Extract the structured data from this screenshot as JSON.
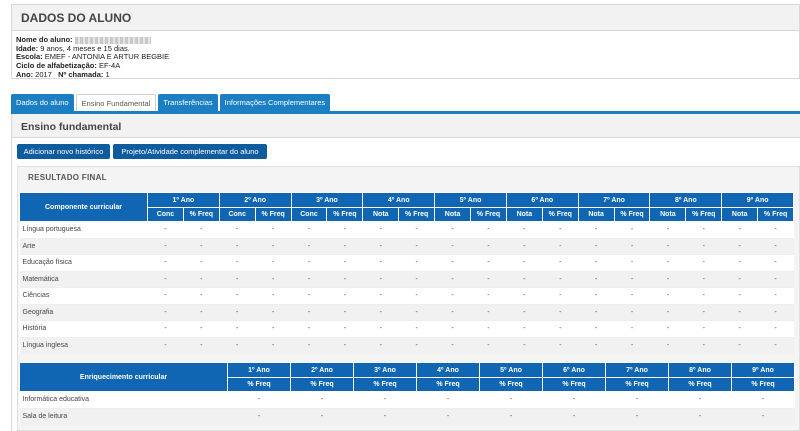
{
  "header": {
    "title": "DADOS DO ALUNO",
    "fields": {
      "nome_label": "Nome do aluno:",
      "idade_label": "Idade:",
      "idade_value": "9 anos, 4 meses e 15 dias.",
      "escola_label": "Escola:",
      "escola_value": "EMEF - ANTONIA E ARTUR BEGBIE",
      "ciclo_label": "Ciclo de alfabetização:",
      "ciclo_value": "EF-4A",
      "ano_label": "Ano:",
      "ano_value": "2017",
      "chamada_label": "Nº chamada:",
      "chamada_value": "1"
    }
  },
  "tabs": [
    {
      "label": "Dados do aluno"
    },
    {
      "label": "Ensino Fundamental"
    },
    {
      "label": "Transferências"
    },
    {
      "label": "Informações Complementares"
    }
  ],
  "panel": {
    "title": "Ensino fundamental",
    "btn_add": "Adicionar novo histórico",
    "btn_project": "Projeto/Atividade complementar do aluno",
    "result_title": "RESULTADO FINAL"
  },
  "table1": {
    "col_header": "Componente curricular",
    "years": [
      "1º Ano",
      "2º Ano",
      "3º Ano",
      "4º Ano",
      "5º Ano",
      "6º Ano",
      "7º Ano",
      "8º Ano",
      "9º Ano"
    ],
    "sub": [
      [
        "Conc",
        "% Freq"
      ],
      [
        "Conc",
        "% Freq"
      ],
      [
        "Conc",
        "% Freq"
      ],
      [
        "Nota",
        "% Freq"
      ],
      [
        "Nota",
        "% Freq"
      ],
      [
        "Nota",
        "% Freq"
      ],
      [
        "Nota",
        "% Freq"
      ],
      [
        "Nota",
        "% Freq"
      ],
      [
        "Nota",
        "% Freq"
      ]
    ],
    "rows": [
      {
        "name": "Língua portuguesa",
        "cells": [
          "-",
          "-",
          "-",
          "-",
          "-",
          "-",
          "-",
          "-",
          "-",
          "-",
          "-",
          "-",
          "-",
          "-",
          "-",
          "-",
          "-",
          "-"
        ]
      },
      {
        "name": "Arte",
        "cells": [
          "-",
          "-",
          "-",
          "-",
          "-",
          "-",
          "-",
          "-",
          "-",
          "-",
          "-",
          "-",
          "-",
          "-",
          "-",
          "-",
          "-",
          "-"
        ]
      },
      {
        "name": "Educação física",
        "cells": [
          "-",
          "-",
          "-",
          "-",
          "-",
          "-",
          "-",
          "-",
          "-",
          "-",
          "-",
          "-",
          "-",
          "-",
          "-",
          "-",
          "-",
          "-"
        ]
      },
      {
        "name": "Matemática",
        "cells": [
          "-",
          "-",
          "-",
          "-",
          "-",
          "-",
          "-",
          "-",
          "-",
          "-",
          "-",
          "-",
          "-",
          "-",
          "-",
          "-",
          "-",
          "-"
        ]
      },
      {
        "name": "Ciências",
        "cells": [
          "-",
          "-",
          "-",
          "-",
          "-",
          "-",
          "-",
          "-",
          "-",
          "-",
          "-",
          "-",
          "-",
          "-",
          "-",
          "-",
          "-",
          "-"
        ]
      },
      {
        "name": "Geografia",
        "cells": [
          "-",
          "-",
          "-",
          "-",
          "-",
          "-",
          "-",
          "-",
          "-",
          "-",
          "-",
          "-",
          "-",
          "-",
          "-",
          "-",
          "-",
          "-"
        ]
      },
      {
        "name": "História",
        "cells": [
          "-",
          "-",
          "-",
          "-",
          "-",
          "-",
          "-",
          "-",
          "-",
          "-",
          "-",
          "-",
          "-",
          "-",
          "-",
          "-",
          "-",
          "-"
        ]
      },
      {
        "name": "Língua inglesa",
        "cells": [
          "-",
          "-",
          "-",
          "-",
          "-",
          "-",
          "-",
          "-",
          "-",
          "-",
          "-",
          "-",
          "-",
          "-",
          "-",
          "-",
          "-",
          "-"
        ]
      }
    ]
  },
  "table2": {
    "col_header": "Enriquecimento curricular",
    "years": [
      "1º Ano",
      "2º Ano",
      "3º Ano",
      "4º Ano",
      "5º Ano",
      "6º Ano",
      "7º Ano",
      "8º Ano",
      "9º Ano"
    ],
    "sub": [
      "% Freq",
      "% Freq",
      "% Freq",
      "% Freq",
      "% Freq",
      "% Freq",
      "% Freq",
      "% Freq",
      "% Freq"
    ],
    "rows": [
      {
        "name": "Informática educativa",
        "cells": [
          "-",
          "-",
          "-",
          "-",
          "-",
          "-",
          "-",
          "-",
          "-"
        ]
      },
      {
        "name": "Sala de leitura",
        "cells": [
          "-",
          "-",
          "-",
          "-",
          "-",
          "-",
          "-",
          "-",
          "-"
        ]
      }
    ]
  }
}
